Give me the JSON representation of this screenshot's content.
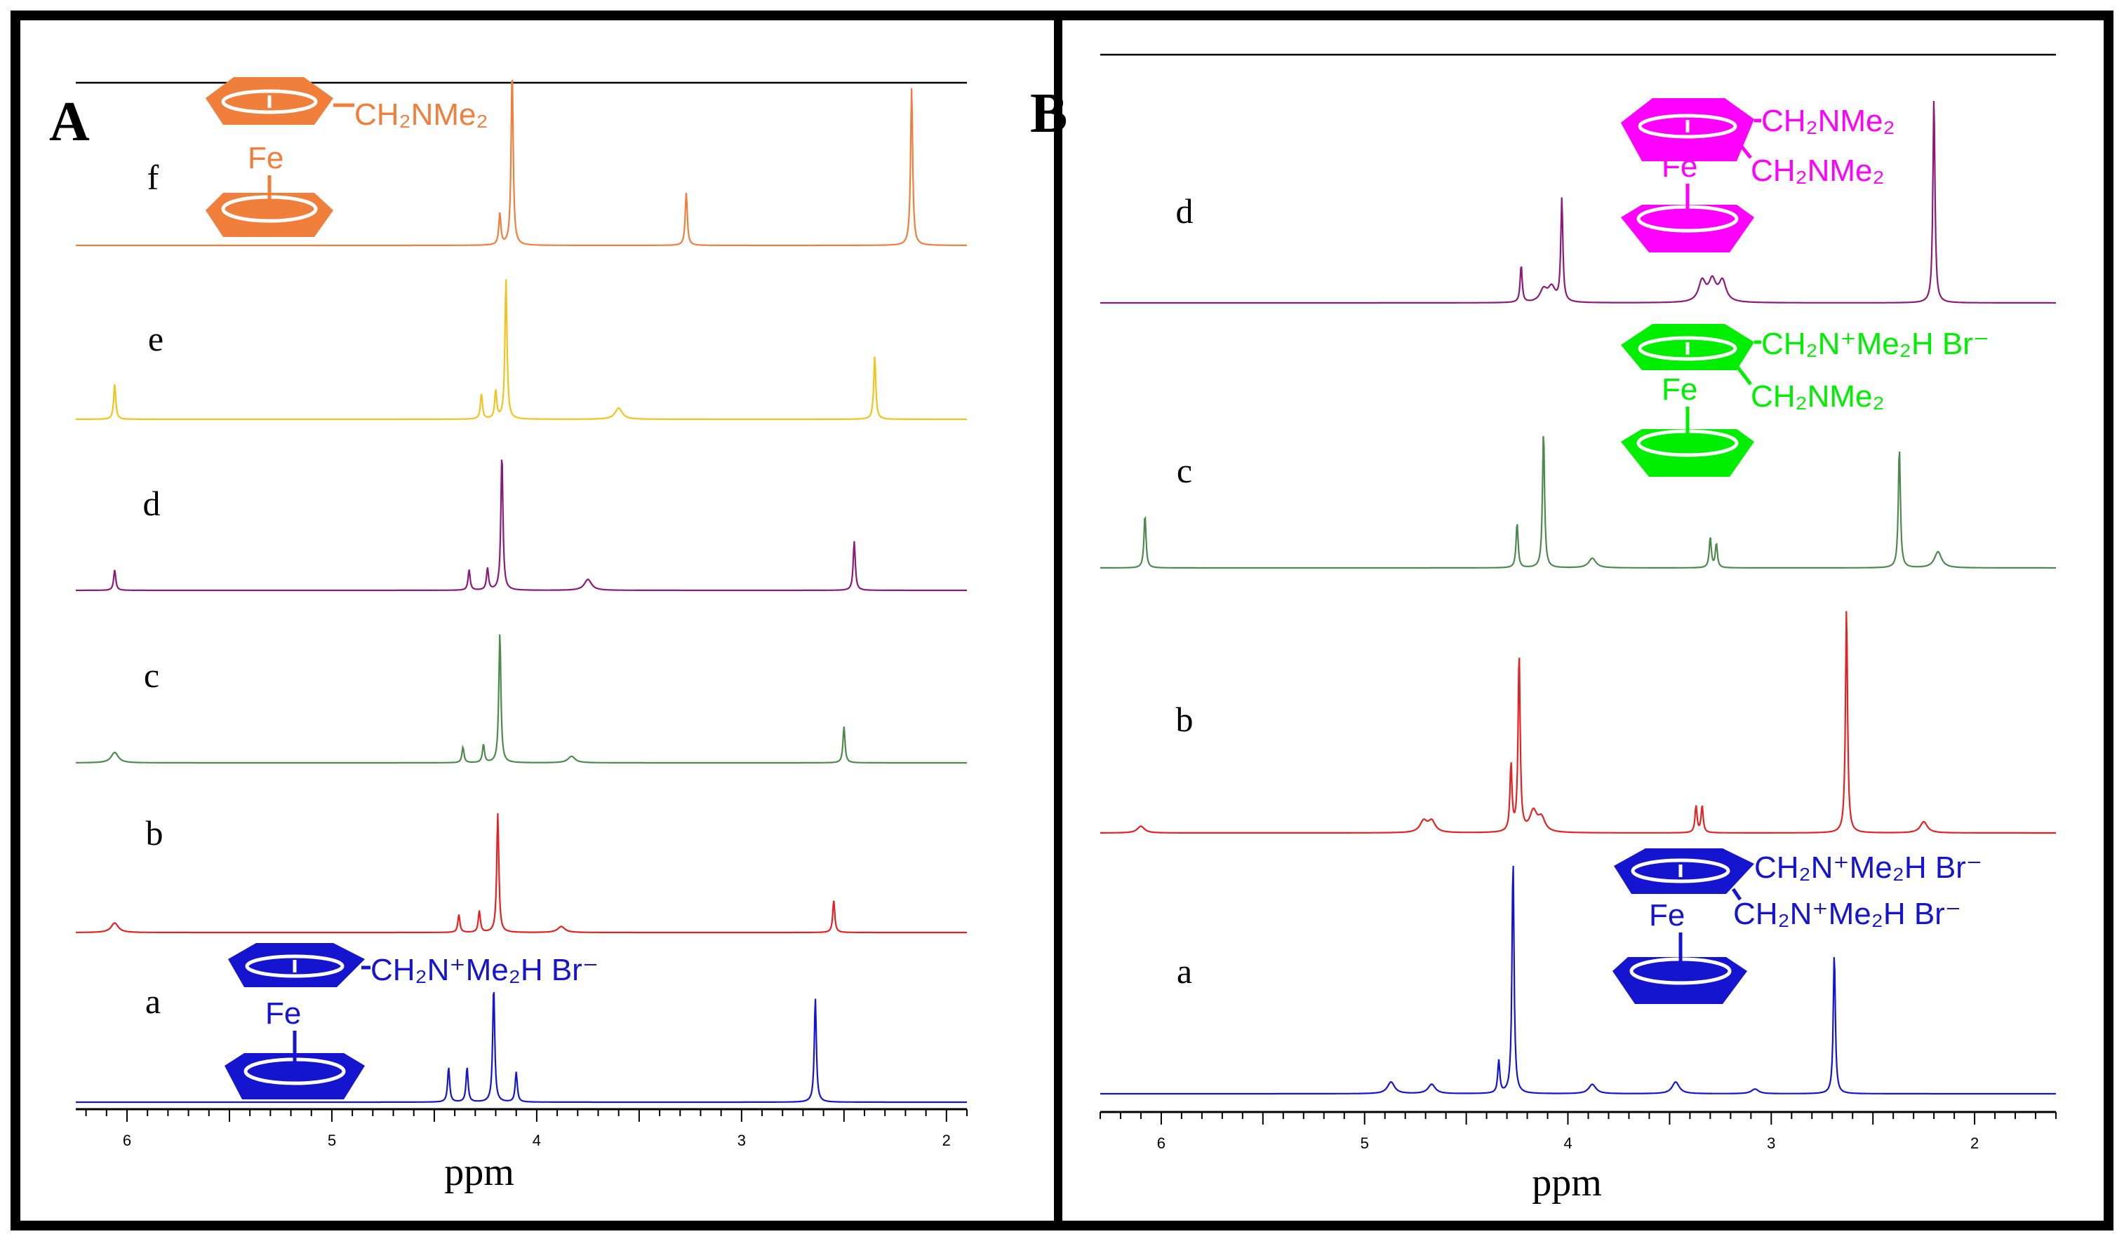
{
  "chart_data": [
    {
      "type": "line",
      "panel_label": "A",
      "xlabel": "ppm",
      "xlim": [
        6.25,
        1.9
      ],
      "x_ticks": [
        "6",
        "5",
        "4",
        "3",
        "2"
      ],
      "x_tick_values": [
        6,
        5,
        4,
        3,
        2
      ],
      "series": [
        {
          "name": "f",
          "color": "#F07F3C",
          "peaks": [
            [
              4.18,
              0.18
            ],
            [
              4.12,
              1.0
            ],
            [
              3.27,
              0.3
            ],
            [
              2.17,
              0.9
            ]
          ]
        },
        {
          "name": "e",
          "color": "#F2C31B",
          "peaks": [
            [
              6.06,
              0.25
            ],
            [
              4.27,
              0.18
            ],
            [
              4.2,
              0.2
            ],
            [
              4.15,
              1.0
            ],
            [
              3.6,
              0.08
            ],
            [
              2.35,
              0.45
            ]
          ]
        },
        {
          "name": "d",
          "color": "#8B1A7A",
          "peaks": [
            [
              6.06,
              0.15
            ],
            [
              4.33,
              0.15
            ],
            [
              4.24,
              0.16
            ],
            [
              4.17,
              1.0
            ],
            [
              3.75,
              0.08
            ],
            [
              2.45,
              0.36
            ]
          ]
        },
        {
          "name": "c",
          "color": "#4E8A4E",
          "peaks": [
            [
              6.06,
              0.08
            ],
            [
              4.36,
              0.12
            ],
            [
              4.26,
              0.14
            ],
            [
              4.18,
              1.0
            ],
            [
              3.83,
              0.05
            ],
            [
              2.5,
              0.28
            ]
          ]
        },
        {
          "name": "b",
          "color": "#E52222",
          "peaks": [
            [
              6.06,
              0.08
            ],
            [
              4.38,
              0.15
            ],
            [
              4.28,
              0.18
            ],
            [
              4.19,
              1.0
            ],
            [
              3.88,
              0.05
            ],
            [
              2.55,
              0.27
            ]
          ]
        },
        {
          "name": "a",
          "color": "#1515D0",
          "peaks": [
            [
              4.43,
              0.3
            ],
            [
              4.34,
              0.3
            ],
            [
              4.21,
              1.0
            ],
            [
              4.1,
              0.26
            ],
            [
              2.64,
              0.9
            ]
          ]
        }
      ],
      "structures": [
        {
          "row": "f",
          "color": "#F07F3C",
          "label": "CH₂NMe₂",
          "fe": "Fe"
        },
        {
          "row": "a",
          "color": "#1515D0",
          "label": "CH₂N⁺Me₂H  Br⁻",
          "fe": "Fe"
        }
      ]
    },
    {
      "type": "line",
      "panel_label": "B",
      "xlabel": "ppm",
      "xlim": [
        6.3,
        1.6
      ],
      "x_ticks": [
        "6",
        "5",
        "4",
        "3",
        "2"
      ],
      "x_tick_values": [
        6,
        5,
        4,
        3,
        2
      ],
      "series": [
        {
          "name": "d",
          "color": "#8B1A7A",
          "peaks": [
            [
              4.23,
              0.18
            ],
            [
              4.12,
              0.06
            ],
            [
              4.08,
              0.07
            ],
            [
              4.03,
              0.5
            ],
            [
              3.34,
              0.1
            ],
            [
              3.29,
              0.1
            ],
            [
              3.24,
              0.1
            ],
            [
              2.2,
              1.0
            ]
          ]
        },
        {
          "name": "c",
          "color": "#4E8A4E",
          "peaks": [
            [
              6.08,
              0.33
            ],
            [
              4.25,
              0.28
            ],
            [
              4.12,
              0.85
            ],
            [
              3.88,
              0.06
            ],
            [
              3.3,
              0.19
            ],
            [
              3.27,
              0.15
            ],
            [
              2.37,
              0.75
            ],
            [
              2.18,
              0.1
            ]
          ]
        },
        {
          "name": "b",
          "color": "#E52222",
          "peaks": [
            [
              6.1,
              0.03
            ],
            [
              4.71,
              0.05
            ],
            [
              4.67,
              0.05
            ],
            [
              4.28,
              0.3
            ],
            [
              4.24,
              0.8
            ],
            [
              4.17,
              0.09
            ],
            [
              4.13,
              0.06
            ],
            [
              3.37,
              0.12
            ],
            [
              3.34,
              0.12
            ],
            [
              2.63,
              1.0
            ],
            [
              2.25,
              0.05
            ]
          ]
        },
        {
          "name": "a",
          "color": "#1515D0",
          "peaks": [
            [
              4.87,
              0.05
            ],
            [
              4.67,
              0.04
            ],
            [
              4.34,
              0.14
            ],
            [
              4.27,
              1.0
            ],
            [
              3.88,
              0.04
            ],
            [
              3.47,
              0.05
            ],
            [
              3.08,
              0.02
            ],
            [
              2.69,
              0.6
            ]
          ]
        }
      ],
      "structures": [
        {
          "row": "d",
          "color": "#FF00FF",
          "label1": "CH₂NMe₂",
          "label2": "CH₂NMe₂",
          "fe": "Fe"
        },
        {
          "row": "c",
          "color": "#00EE00",
          "label1": "CH₂N⁺Me₂H  Br⁻",
          "label2": "CH₂NMe₂",
          "fe": "Fe"
        },
        {
          "row": "a",
          "color": "#1515D0",
          "label1": "CH₂N⁺Me₂H  Br⁻",
          "label2": "CH₂N⁺Me₂H  Br⁻",
          "fe": "Fe"
        }
      ]
    }
  ]
}
